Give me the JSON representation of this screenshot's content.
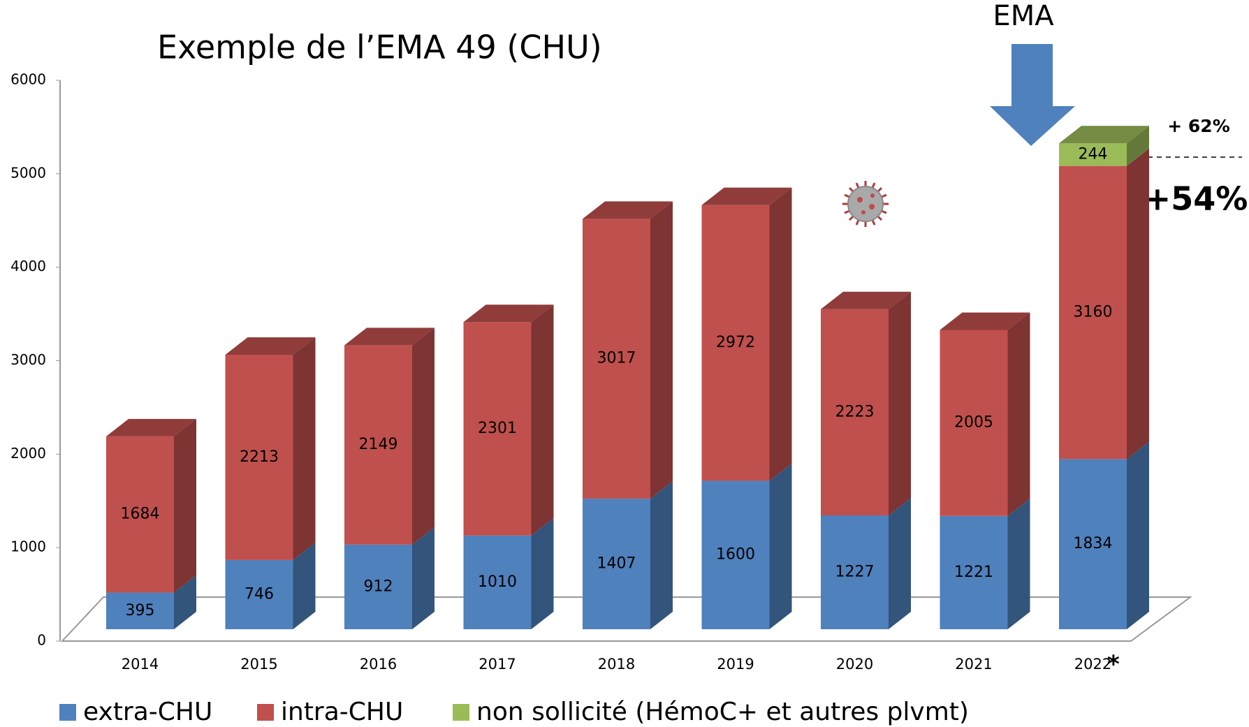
{
  "chart_data": {
    "type": "bar3d_stacked",
    "title": "Exemple de l’EMA 49 (CHU)",
    "categories": [
      "2014",
      "2015",
      "2016",
      "2017",
      "2018",
      "2019",
      "2020",
      "2021",
      "2022"
    ],
    "series": [
      {
        "name": "extra-CHU",
        "color": "#4f81bd",
        "values": [
          395,
          746,
          912,
          1010,
          1407,
          1600,
          1227,
          1221,
          1834
        ]
      },
      {
        "name": "intra-CHU",
        "color": "#c0504d",
        "values": [
          1684,
          2213,
          2149,
          2301,
          3017,
          2972,
          2223,
          2005,
          3160
        ]
      },
      {
        "name": "non sollicité (HémoC+ et autres plvmt)",
        "color": "#9bbb59",
        "values": [
          null,
          null,
          null,
          null,
          null,
          null,
          null,
          null,
          244
        ]
      }
    ],
    "ylim": [
      0,
      6000
    ],
    "yticks": [
      0,
      1000,
      2000,
      3000,
      4000,
      5000,
      6000
    ],
    "annotations": {
      "ema": "EMA",
      "asterisk": "*",
      "plus62": "+ 62%",
      "plus54": "+54%"
    }
  }
}
